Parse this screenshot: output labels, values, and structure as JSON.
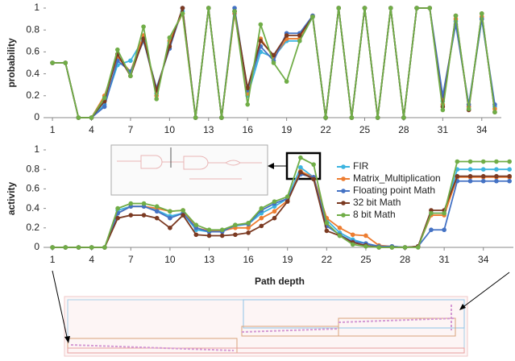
{
  "chart_data": [
    {
      "type": "line",
      "ylabel": "probability",
      "x": [
        1,
        2,
        3,
        4,
        5,
        6,
        7,
        8,
        9,
        10,
        11,
        12,
        13,
        14,
        15,
        16,
        17,
        18,
        19,
        20,
        21,
        22,
        23,
        24,
        25,
        26,
        27,
        28,
        29,
        30,
        31,
        32,
        33,
        34,
        35
      ],
      "xlim": [
        0.5,
        35.5
      ],
      "xticks": [
        1,
        4,
        7,
        10,
        13,
        16,
        19,
        22,
        25,
        28,
        31,
        34
      ],
      "ylim": [
        0,
        1
      ],
      "yticks": [
        0,
        0.2,
        0.4,
        0.6,
        0.8,
        1
      ],
      "grid": false,
      "series": [
        {
          "color": "#3cb4e0",
          "values": [
            0.5,
            0.5,
            0,
            0,
            0.12,
            0.48,
            0.52,
            0.72,
            0.22,
            0.68,
            0.97,
            0,
            1,
            0,
            0.97,
            0.2,
            0.6,
            0.55,
            0.7,
            0.7,
            0.92,
            0,
            1,
            0,
            1,
            0,
            1,
            0,
            1,
            1,
            0.15,
            0.88,
            0.1,
            0.9,
            0.1
          ]
        },
        {
          "color": "#ed7d31",
          "values": [
            0.5,
            0.5,
            0,
            0,
            0.2,
            0.55,
            0.42,
            0.75,
            0.2,
            0.7,
            0.95,
            0,
            1,
            0,
            0.95,
            0.22,
            0.72,
            0.55,
            0.72,
            0.72,
            0.93,
            0,
            1,
            0,
            1,
            0,
            1,
            0,
            1,
            1,
            0.12,
            0.9,
            0.1,
            0.92,
            0.08
          ]
        },
        {
          "color": "#4472c4",
          "values": [
            0.5,
            0.5,
            0,
            0,
            0.1,
            0.52,
            0.42,
            0.7,
            0.27,
            0.63,
            1,
            0,
            1,
            0,
            1,
            0.25,
            0.65,
            0.52,
            0.77,
            0.77,
            0.93,
            0,
            1,
            0,
            1,
            0,
            1,
            0,
            1,
            1,
            0.2,
            0.85,
            0.12,
            0.9,
            0.12
          ]
        },
        {
          "color": "#7b3a22",
          "values": [
            0.5,
            0.5,
            0,
            0,
            0.15,
            0.58,
            0.38,
            0.72,
            0.25,
            0.65,
            1,
            0,
            1,
            0,
            0.97,
            0.27,
            0.7,
            0.57,
            0.75,
            0.75,
            0.92,
            0,
            1,
            0,
            1,
            0,
            1,
            0,
            1,
            1,
            0.1,
            0.93,
            0.07,
            0.95,
            0.05
          ]
        },
        {
          "color": "#70ad47",
          "values": [
            0.5,
            0.5,
            0,
            0,
            0.18,
            0.62,
            0.38,
            0.83,
            0.17,
            0.73,
            0.95,
            0,
            1,
            0,
            0.97,
            0.12,
            0.85,
            0.5,
            0.33,
            0.7,
            0.92,
            0,
            1,
            0,
            1,
            0,
            1,
            0,
            1,
            1,
            0.07,
            0.93,
            0.08,
            0.95,
            0.05
          ]
        }
      ]
    },
    {
      "type": "line",
      "ylabel": "activity",
      "xlabel": "Path depth",
      "legend": "upper right",
      "x": [
        1,
        2,
        3,
        4,
        5,
        6,
        7,
        8,
        9,
        10,
        11,
        12,
        13,
        14,
        15,
        16,
        17,
        18,
        19,
        20,
        21,
        22,
        23,
        24,
        25,
        26,
        27,
        28,
        29,
        30,
        31,
        32,
        33,
        34,
        35,
        36
      ],
      "xlim": [
        0.5,
        36.3
      ],
      "xticks": [
        1,
        4,
        7,
        10,
        13,
        16,
        19,
        22,
        25,
        28,
        31,
        34
      ],
      "ylim": [
        0,
        1
      ],
      "yticks": [
        0,
        0.2,
        0.4,
        0.6,
        0.8,
        1
      ],
      "grid": false,
      "series": [
        {
          "name": "FIR",
          "color": "#3cb4e0",
          "values": [
            0,
            0,
            0,
            0,
            0,
            0.38,
            0.42,
            0.42,
            0.38,
            0.32,
            0.35,
            0.18,
            0.16,
            0.17,
            0.22,
            0.24,
            0.35,
            0.42,
            0.5,
            0.82,
            0.72,
            0.28,
            0.15,
            0.08,
            0.04,
            0.01,
            0.01,
            0,
            0.01,
            0.35,
            0.35,
            0.8,
            0.8,
            0.8,
            0.8,
            0.8
          ]
        },
        {
          "name": "Matrix_Multiplication",
          "color": "#ed7d31",
          "values": [
            0,
            0,
            0,
            0,
            0,
            0.35,
            0.42,
            0.42,
            0.4,
            0.37,
            0.38,
            0.2,
            0.17,
            0.17,
            0.2,
            0.2,
            0.3,
            0.37,
            0.48,
            0.78,
            0.72,
            0.3,
            0.2,
            0.13,
            0.12,
            0.02,
            0.01,
            0,
            0.01,
            0.33,
            0.33,
            0.72,
            0.72,
            0.72,
            0.72,
            0.72
          ]
        },
        {
          "name": "Floating point Math",
          "color": "#4472c4",
          "values": [
            0,
            0,
            0,
            0,
            0,
            0.35,
            0.42,
            0.42,
            0.37,
            0.3,
            0.35,
            0.2,
            0.16,
            0.16,
            0.23,
            0.24,
            0.38,
            0.45,
            0.5,
            0.75,
            0.72,
            0.22,
            0.13,
            0.06,
            0.04,
            0.01,
            0.01,
            0,
            0.01,
            0.18,
            0.18,
            0.68,
            0.68,
            0.68,
            0.68,
            0.68
          ]
        },
        {
          "name": "32 bit Math",
          "color": "#7b3a22",
          "values": [
            0,
            0,
            0,
            0,
            0,
            0.3,
            0.33,
            0.33,
            0.3,
            0.2,
            0.33,
            0.13,
            0.12,
            0.12,
            0.13,
            0.15,
            0.22,
            0.3,
            0.47,
            0.77,
            0.7,
            0.17,
            0.12,
            0.05,
            0.02,
            0,
            0,
            0,
            0.01,
            0.38,
            0.38,
            0.73,
            0.73,
            0.73,
            0.73,
            0.73
          ]
        },
        {
          "name": "8 bit Math",
          "color": "#70ad47",
          "values": [
            0,
            0,
            0,
            0,
            0,
            0.4,
            0.45,
            0.45,
            0.42,
            0.37,
            0.38,
            0.23,
            0.18,
            0.18,
            0.23,
            0.25,
            0.4,
            0.47,
            0.52,
            0.92,
            0.85,
            0.25,
            0.12,
            0.03,
            0.01,
            0,
            0,
            0,
            0,
            0.35,
            0.35,
            0.88,
            0.88,
            0.88,
            0.88,
            0.88
          ]
        }
      ]
    }
  ]
}
